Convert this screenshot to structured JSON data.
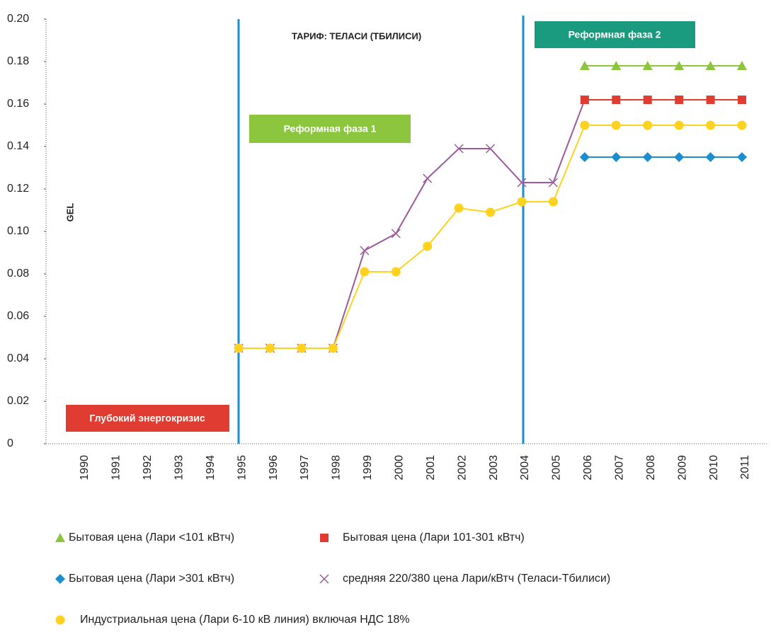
{
  "chart_data": {
    "type": "line",
    "title": "ТАРИФ: ТЕЛАСИ (ТБИЛИСИ)",
    "y_label": "GEL",
    "annotations": [
      "Реформная фаза 1",
      "Реформная фаза 2",
      "Глубокий энергокризис"
    ],
    "categories": [
      "1990",
      "1991",
      "1992",
      "1993",
      "1994",
      "1995",
      "1996",
      "1997",
      "1998",
      "1999",
      "2000",
      "2001",
      "2002",
      "2003",
      "2004",
      "2005",
      "2006",
      "2007",
      "2008",
      "2009",
      "2010",
      "2011"
    ],
    "ylim": [
      0,
      0.2
    ],
    "yticks": [
      0,
      0.02,
      0.04,
      0.06,
      0.08,
      {
        "value": 0.1,
        "label": "0.10"
      },
      0.12,
      0.14,
      0.16,
      0.18,
      {
        "value": 0.2,
        "label": "0.20"
      }
    ],
    "series": [
      {
        "name": "Бытовая цена  (Лари <101 кВтч)",
        "color": "#8cc63f",
        "marker": "triangle",
        "values": [
          null,
          null,
          null,
          null,
          null,
          null,
          null,
          null,
          null,
          null,
          null,
          null,
          null,
          null,
          null,
          null,
          0.178,
          0.178,
          0.178,
          0.178,
          0.178,
          0.178
        ]
      },
      {
        "name": "Бытовая цена (Лари 101-301 кВтч)",
        "color": "#e03c31",
        "marker": "square",
        "values": [
          null,
          null,
          null,
          null,
          null,
          null,
          null,
          null,
          null,
          null,
          null,
          null,
          null,
          null,
          null,
          null,
          0.162,
          0.162,
          0.162,
          0.162,
          0.162,
          0.162
        ]
      },
      {
        "name": "Бытовая цена  (Лари >301 кВтч)",
        "color": "#1b8ecf",
        "marker": "diamond",
        "values": [
          null,
          null,
          null,
          null,
          null,
          null,
          null,
          null,
          null,
          null,
          null,
          null,
          null,
          null,
          null,
          null,
          0.135,
          0.135,
          0.135,
          0.135,
          0.135,
          0.135
        ]
      },
      {
        "name": "средняя 220/380 цена Лари/кВтч (Теласи-Тбилиси)",
        "color": "#9b5b9b",
        "marker": "x",
        "values": [
          null,
          null,
          null,
          null,
          null,
          0.045,
          0.045,
          0.045,
          0.045,
          0.091,
          0.099,
          0.125,
          0.139,
          0.139,
          0.123,
          0.123,
          0.162,
          null,
          null,
          null,
          null,
          null
        ]
      },
      {
        "name": "Индустриальная цена (Лари 6-10 кВ линия) включая НДС 18%",
        "color": "#ffd21f",
        "marker": "circle",
        "values": [
          null,
          null,
          null,
          null,
          null,
          0.045,
          0.045,
          0.045,
          0.045,
          0.081,
          0.081,
          0.093,
          0.111,
          0.109,
          0.114,
          0.114,
          0.15,
          0.15,
          0.15,
          0.15,
          0.15,
          0.15
        ]
      }
    ]
  }
}
